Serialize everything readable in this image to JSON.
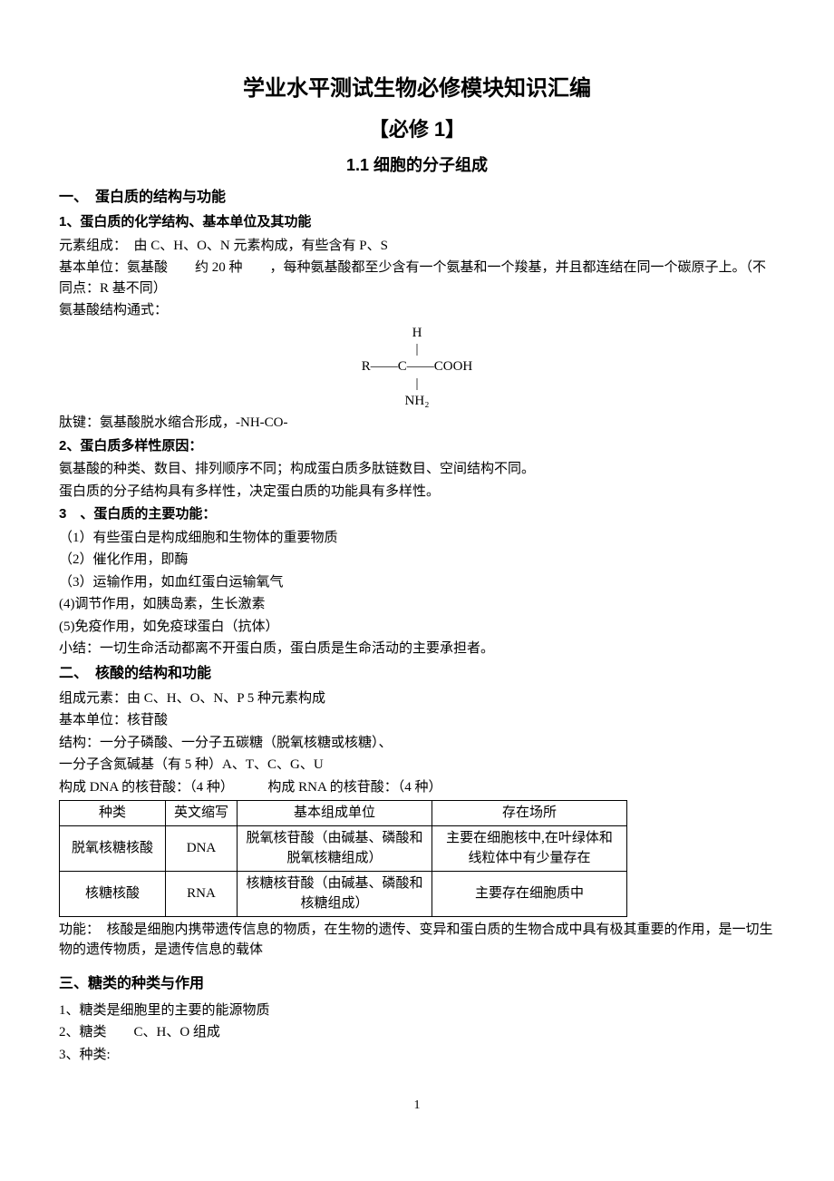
{
  "title_main": "学业水平测试生物必修模块知识汇编",
  "title_sub": "【必修 1】",
  "section_num": "1.1 细胞的分子组成",
  "s1": {
    "h": "一、　蛋白质的结构与功能",
    "s1_1": "1、蛋白质的化学结构、基本单位及其功能",
    "p1": "元素组成：　由 C、H、O、N 元素构成，有些含有 P、S",
    "p2": "基本单位：氨基酸　　约 20 种　　，每种氨基酸都至少含有一个氨基和一个羧基，并且都连结在同一个碳原子上。（不同点：R 基不同）",
    "p3": "氨基酸结构通式：",
    "formula": {
      "l1": "H",
      "l2": "|",
      "l3": "R——C——COOH",
      "l4": "|",
      "l5": "NH₂"
    },
    "p4": "肽键：氨基酸脱水缩合形成，-NH-CO-",
    "s1_2": "2、蛋白质多样性原因：",
    "p5": "氨基酸的种类、数目、排列顺序不同；构成蛋白质多肽链数目、空间结构不同。",
    "p6": "蛋白质的分子结构具有多样性，决定蛋白质的功能具有多样性。",
    "s1_3": "3　、蛋白质的主要功能：",
    "p7": "（1）有些蛋白是构成细胞和生物体的重要物质",
    "p8": "（2）催化作用，即酶",
    "p9": "（3）运输作用，如血红蛋白运输氧气",
    "p10": "(4)调节作用，如胰岛素，生长激素",
    "p11": "(5)免疫作用，如免疫球蛋白（抗体）",
    "p12": "小结：一切生命活动都离不开蛋白质，蛋白质是生命活动的主要承担者。"
  },
  "s2": {
    "h": "二、　核酸的结构和功能",
    "p1": "组成元素：由 C、H、O、N、P 5 种元素构成",
    "p2": "基本单位：核苷酸",
    "p3": "结构：一分子磷酸、一分子五碳糖（脱氧核糖或核糖）、",
    "p4": "一分子含氮碱基（有 5 种）A、T、C、G、U",
    "p5": "构成 DNA 的核苷酸：（4 种）　　　构成 RNA 的核苷酸：（4 种）",
    "table": {
      "header": [
        "种类",
        "英文缩写",
        "基本组成单位",
        "存在场所"
      ],
      "rows": [
        [
          "脱氧核糖核酸",
          "DNA",
          "脱氧核苷酸（由碱基、磷酸和脱氧核糖组成）",
          "主要在细胞核中,在叶绿体和线粒体中有少量存在"
        ],
        [
          "核糖核酸",
          "RNA",
          "核糖核苷酸（由碱基、磷酸和核糖组成）",
          "主要存在细胞质中"
        ]
      ]
    },
    "p6": "功能：　核酸是细胞内携带遗传信息的物质，在生物的遗传、变异和蛋白质的生物合成中具有极其重要的作用，是一切生物的遗传物质，是遗传信息的载体"
  },
  "s3": {
    "h": "三、糖类的种类与作用",
    "p1": "1、糖类是细胞里的主要的能源物质",
    "p2": "2、糖类　　C、H、O 组成",
    "p3": "3、种类:"
  },
  "page_num": "1"
}
